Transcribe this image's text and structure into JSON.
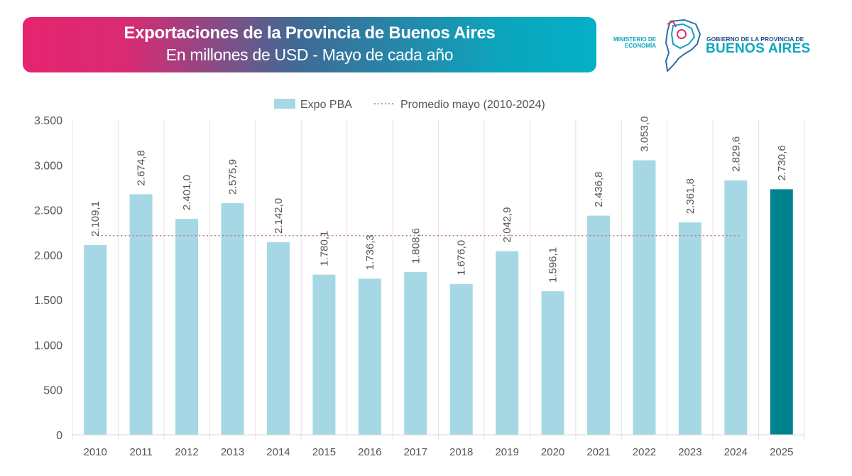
{
  "header": {
    "title": "Exportaciones de la Provincia de Buenos Aires",
    "subtitle": "En millones de USD - Mayo de cada año"
  },
  "logo": {
    "ministry": "MINISTERIO DE ECONOMÍA",
    "government": "GOBIERNO DE LA PROVINCIA DE",
    "province": "BUENOS AIRES"
  },
  "colors": {
    "bar": "#a5d8e4",
    "bar_highlight": "#00838f",
    "average_line": "#c0708f",
    "banner_start": "#e6246f",
    "banner_end": "#05b0c6"
  },
  "chart_data": {
    "type": "bar",
    "categories": [
      "2010",
      "2011",
      "2012",
      "2013",
      "2014",
      "2015",
      "2016",
      "2017",
      "2018",
      "2019",
      "2020",
      "2021",
      "2022",
      "2023",
      "2024",
      "2025"
    ],
    "series": [
      {
        "name": "Expo PBA",
        "values": [
          2109.1,
          2674.8,
          2401.0,
          2575.9,
          2142.0,
          1780.1,
          1736.3,
          1808.6,
          1676.0,
          2042.9,
          1596.1,
          2436.8,
          3053.0,
          2361.8,
          2829.6,
          2730.6
        ]
      }
    ],
    "data_labels": [
      "2.109,1",
      "2.674,8",
      "2.401,0",
      "2.575,9",
      "2.142,0",
      "1.780,1",
      "1.736,3",
      "1.808,6",
      "1.676,0",
      "2.042,9",
      "1.596,1",
      "2.436,8",
      "3.053,0",
      "2.361,8",
      "2.829,6",
      "2.730,6"
    ],
    "highlighted_category": "2025",
    "reference_line": {
      "name": "Promedio mayo (2010-2024)",
      "value": 2214.9,
      "from": "2010",
      "to": "2024",
      "style": "dotted"
    },
    "ylim": [
      0,
      3500
    ],
    "yticks": [
      0,
      500,
      1000,
      1500,
      2000,
      2500,
      3000,
      3500
    ],
    "ytick_labels": [
      "0",
      "500",
      "1.000",
      "1.500",
      "2.000",
      "2.500",
      "3.000",
      "3.500"
    ],
    "legend": {
      "position": "top",
      "entries": [
        "Expo PBA",
        "Promedio mayo (2010-2024)"
      ]
    },
    "grid": "vertical category separators",
    "xlabel": "",
    "ylabel": ""
  }
}
